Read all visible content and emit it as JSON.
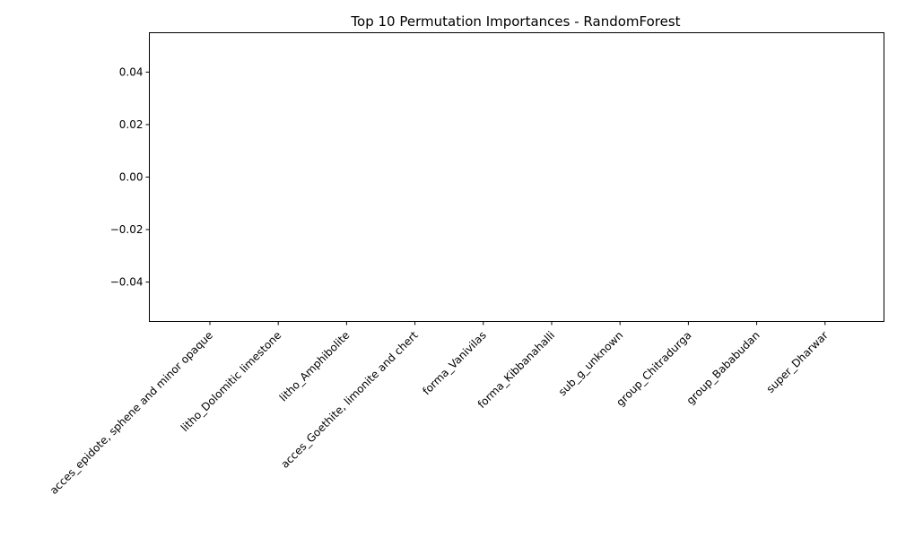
{
  "chart_data": {
    "type": "bar",
    "title": "Top 10 Permutation Importances - RandomForest",
    "xlabel": "",
    "ylabel": "",
    "categories": [
      "acces_epidote, sphene and minor opaque",
      "litho_Dolomitic limestone",
      "litho_Amphibolite",
      "acces_Goethite, limonite and chert",
      "forma_Vanivilas",
      "forma_Kibbanahalli",
      "sub_g_unknown",
      "group_Chitradurga",
      "group_Bababudan",
      "super_Dharwar"
    ],
    "values": [
      0,
      0,
      0,
      0,
      0,
      0,
      0,
      0,
      0,
      0
    ],
    "ylim": [
      -0.055,
      0.055
    ],
    "yticks": [
      0.04,
      0.02,
      0.0,
      -0.02,
      -0.04
    ],
    "ytick_labels": [
      "0.04",
      "0.02",
      "0.00",
      "−0.02",
      "−0.04"
    ],
    "grid": false,
    "bar_color": "#1f77b4"
  }
}
